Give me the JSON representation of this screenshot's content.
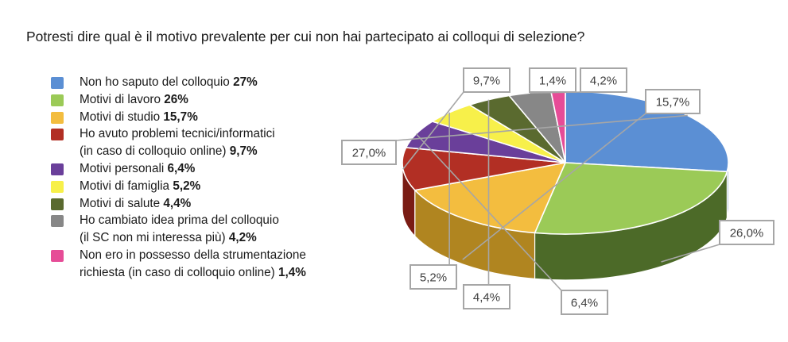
{
  "chart_data": {
    "type": "pie",
    "title": "Potresti dire qual è il motivo prevalente per cui non hai partecipato ai colloqui di selezione?",
    "legend_position": "left",
    "slices": [
      {
        "legend_lines": [
          "Non ho saputo del colloquio"
        ],
        "legend_value": "27%",
        "data_label": "27,0%",
        "value": 27.0,
        "color": "#5b8fd4",
        "dark": "#3f6aa3"
      },
      {
        "legend_lines": [
          "Motivi di lavoro"
        ],
        "legend_value": "26%",
        "data_label": "26,0%",
        "value": 26.0,
        "color": "#9bca57",
        "dark": "#4c6a28"
      },
      {
        "legend_lines": [
          "Motivi di studio"
        ],
        "legend_value": "15,7%",
        "data_label": "15,7%",
        "value": 15.7,
        "color": "#f3bd3f",
        "dark": "#b08520"
      },
      {
        "legend_lines": [
          "Ho avuto problemi tecnici/informatici",
          "(in caso di colloquio online)"
        ],
        "legend_value": "9,7%",
        "data_label": "9,7%",
        "value": 9.7,
        "color": "#b22f24",
        "dark": "#7a1c14"
      },
      {
        "legend_lines": [
          "Motivi personali"
        ],
        "legend_value": "6,4%",
        "data_label": "6,4%",
        "value": 6.4,
        "color": "#6a3f9a",
        "dark": "#3a1f5a"
      },
      {
        "legend_lines": [
          "Motivi di famiglia"
        ],
        "legend_value": "5,2%",
        "data_label": "5,2%",
        "value": 5.2,
        "color": "#f7f04a",
        "dark": "#c9b82a"
      },
      {
        "legend_lines": [
          "Motivi di salute"
        ],
        "legend_value": "4,4%",
        "data_label": "4,4%",
        "value": 4.4,
        "color": "#5a6a2f",
        "dark": "#36421a"
      },
      {
        "legend_lines": [
          "Ho cambiato idea prima del colloquio",
          "(il SC non mi interessa più)"
        ],
        "legend_value": "4,2%",
        "data_label": "4,2%",
        "value": 4.2,
        "color": "#878787",
        "dark": "#555555"
      },
      {
        "legend_lines": [
          "Non ero in possesso della strumentazione",
          "richiesta (in caso di colloquio online)"
        ],
        "legend_value": "1,4%",
        "data_label": "1,4%",
        "value": 1.4,
        "color": "#e64c97",
        "dark": "#a83070"
      }
    ]
  }
}
